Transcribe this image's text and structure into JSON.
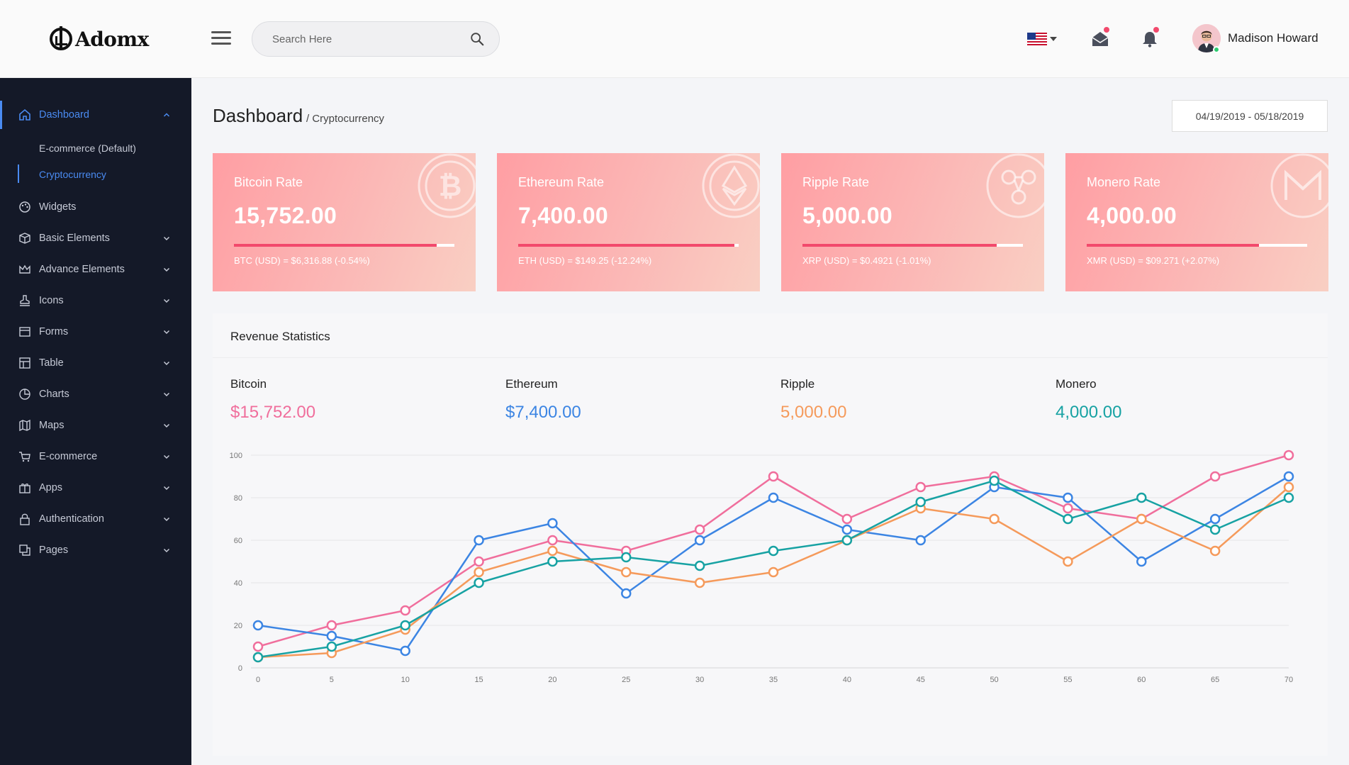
{
  "header": {
    "brand": "Adomx",
    "search_placeholder": "Search Here",
    "user_name": "Madison Howard",
    "icons": [
      "hamburger-icon",
      "search-icon",
      "us-flag-icon",
      "mail-icon",
      "bell-icon"
    ]
  },
  "sidebar": {
    "items": [
      {
        "label": "Dashboard",
        "icon": "home-icon",
        "active": true,
        "expanded": true
      },
      {
        "label": "Widgets",
        "icon": "palette-icon"
      },
      {
        "label": "Basic Elements",
        "icon": "box-icon"
      },
      {
        "label": "Advance Elements",
        "icon": "crown-icon"
      },
      {
        "label": "Icons",
        "icon": "stamp-icon"
      },
      {
        "label": "Forms",
        "icon": "form-icon"
      },
      {
        "label": "Table",
        "icon": "table-icon"
      },
      {
        "label": "Charts",
        "icon": "pie-icon"
      },
      {
        "label": "Maps",
        "icon": "map-icon"
      },
      {
        "label": "E-commerce",
        "icon": "cart-icon"
      },
      {
        "label": "Apps",
        "icon": "gift-icon"
      },
      {
        "label": "Authentication",
        "icon": "lock-icon"
      },
      {
        "label": "Pages",
        "icon": "pages-icon"
      }
    ],
    "dashboard_sub": [
      {
        "label": "E-commerce (Default)",
        "active": false
      },
      {
        "label": "Cryptocurrency",
        "active": true
      }
    ]
  },
  "page": {
    "title": "Dashboard",
    "breadcrumb": "/ Cryptocurrency",
    "date_range": "04/19/2019 - 05/18/2019"
  },
  "rate_cards": [
    {
      "title": "Bitcoin Rate",
      "value": "15,752.00",
      "progress": 0.92,
      "sub": "BTC (USD) = $6,316.88 (-0.54%)",
      "icon": "bitcoin-icon"
    },
    {
      "title": "Ethereum Rate",
      "value": "7,400.00",
      "progress": 0.98,
      "sub": "ETH (USD) = $149.25 (-12.24%)",
      "icon": "ethereum-icon"
    },
    {
      "title": "Ripple Rate",
      "value": "5,000.00",
      "progress": 0.88,
      "sub": "XRP (USD) = $0.4921 (-1.01%)",
      "icon": "ripple-icon"
    },
    {
      "title": "Monero Rate",
      "value": "4,000.00",
      "progress": 0.78,
      "sub": "XMR (USD) = $09.271 (+2.07%)",
      "icon": "monero-icon"
    }
  ],
  "revenue": {
    "title": "Revenue Statistics",
    "stats": [
      {
        "name": "Bitcoin",
        "value": "$15,752.00",
        "color": "#f06e9c"
      },
      {
        "name": "Ethereum",
        "value": "$7,400.00",
        "color": "#3c85e3"
      },
      {
        "name": "Ripple",
        "value": "5,000.00",
        "color": "#f59a5b"
      },
      {
        "name": "Monero",
        "value": "4,000.00",
        "color": "#17a2a3"
      }
    ]
  },
  "chart_data": {
    "type": "line",
    "title": "",
    "xlabel": "",
    "ylabel": "",
    "x": [
      0,
      5,
      10,
      15,
      20,
      25,
      30,
      35,
      40,
      45,
      50,
      55,
      60,
      65,
      70
    ],
    "xticks": [
      0,
      5,
      10,
      15,
      20,
      25,
      30,
      35,
      40,
      45,
      50,
      55,
      60,
      65,
      70
    ],
    "yticks": [
      0,
      20,
      40,
      60,
      80,
      100
    ],
    "xlim": [
      0,
      70
    ],
    "ylim": [
      0,
      100
    ],
    "grid": true,
    "legend": "none",
    "series": [
      {
        "color": "#f06e9c",
        "values": [
          10,
          20,
          27,
          50,
          60,
          55,
          65,
          90,
          70,
          85,
          90,
          75,
          70,
          90,
          100
        ]
      },
      {
        "color": "#3c85e3",
        "values": [
          20,
          15,
          8,
          60,
          68,
          35,
          60,
          80,
          65,
          60,
          85,
          80,
          50,
          70,
          90
        ]
      },
      {
        "color": "#f59a5b",
        "values": [
          5,
          7,
          18,
          45,
          55,
          45,
          40,
          45,
          60,
          75,
          70,
          50,
          70,
          55,
          85
        ]
      },
      {
        "color": "#17a2a3",
        "values": [
          5,
          10,
          20,
          40,
          50,
          52,
          48,
          55,
          60,
          78,
          88,
          70,
          80,
          65,
          80
        ]
      }
    ]
  }
}
